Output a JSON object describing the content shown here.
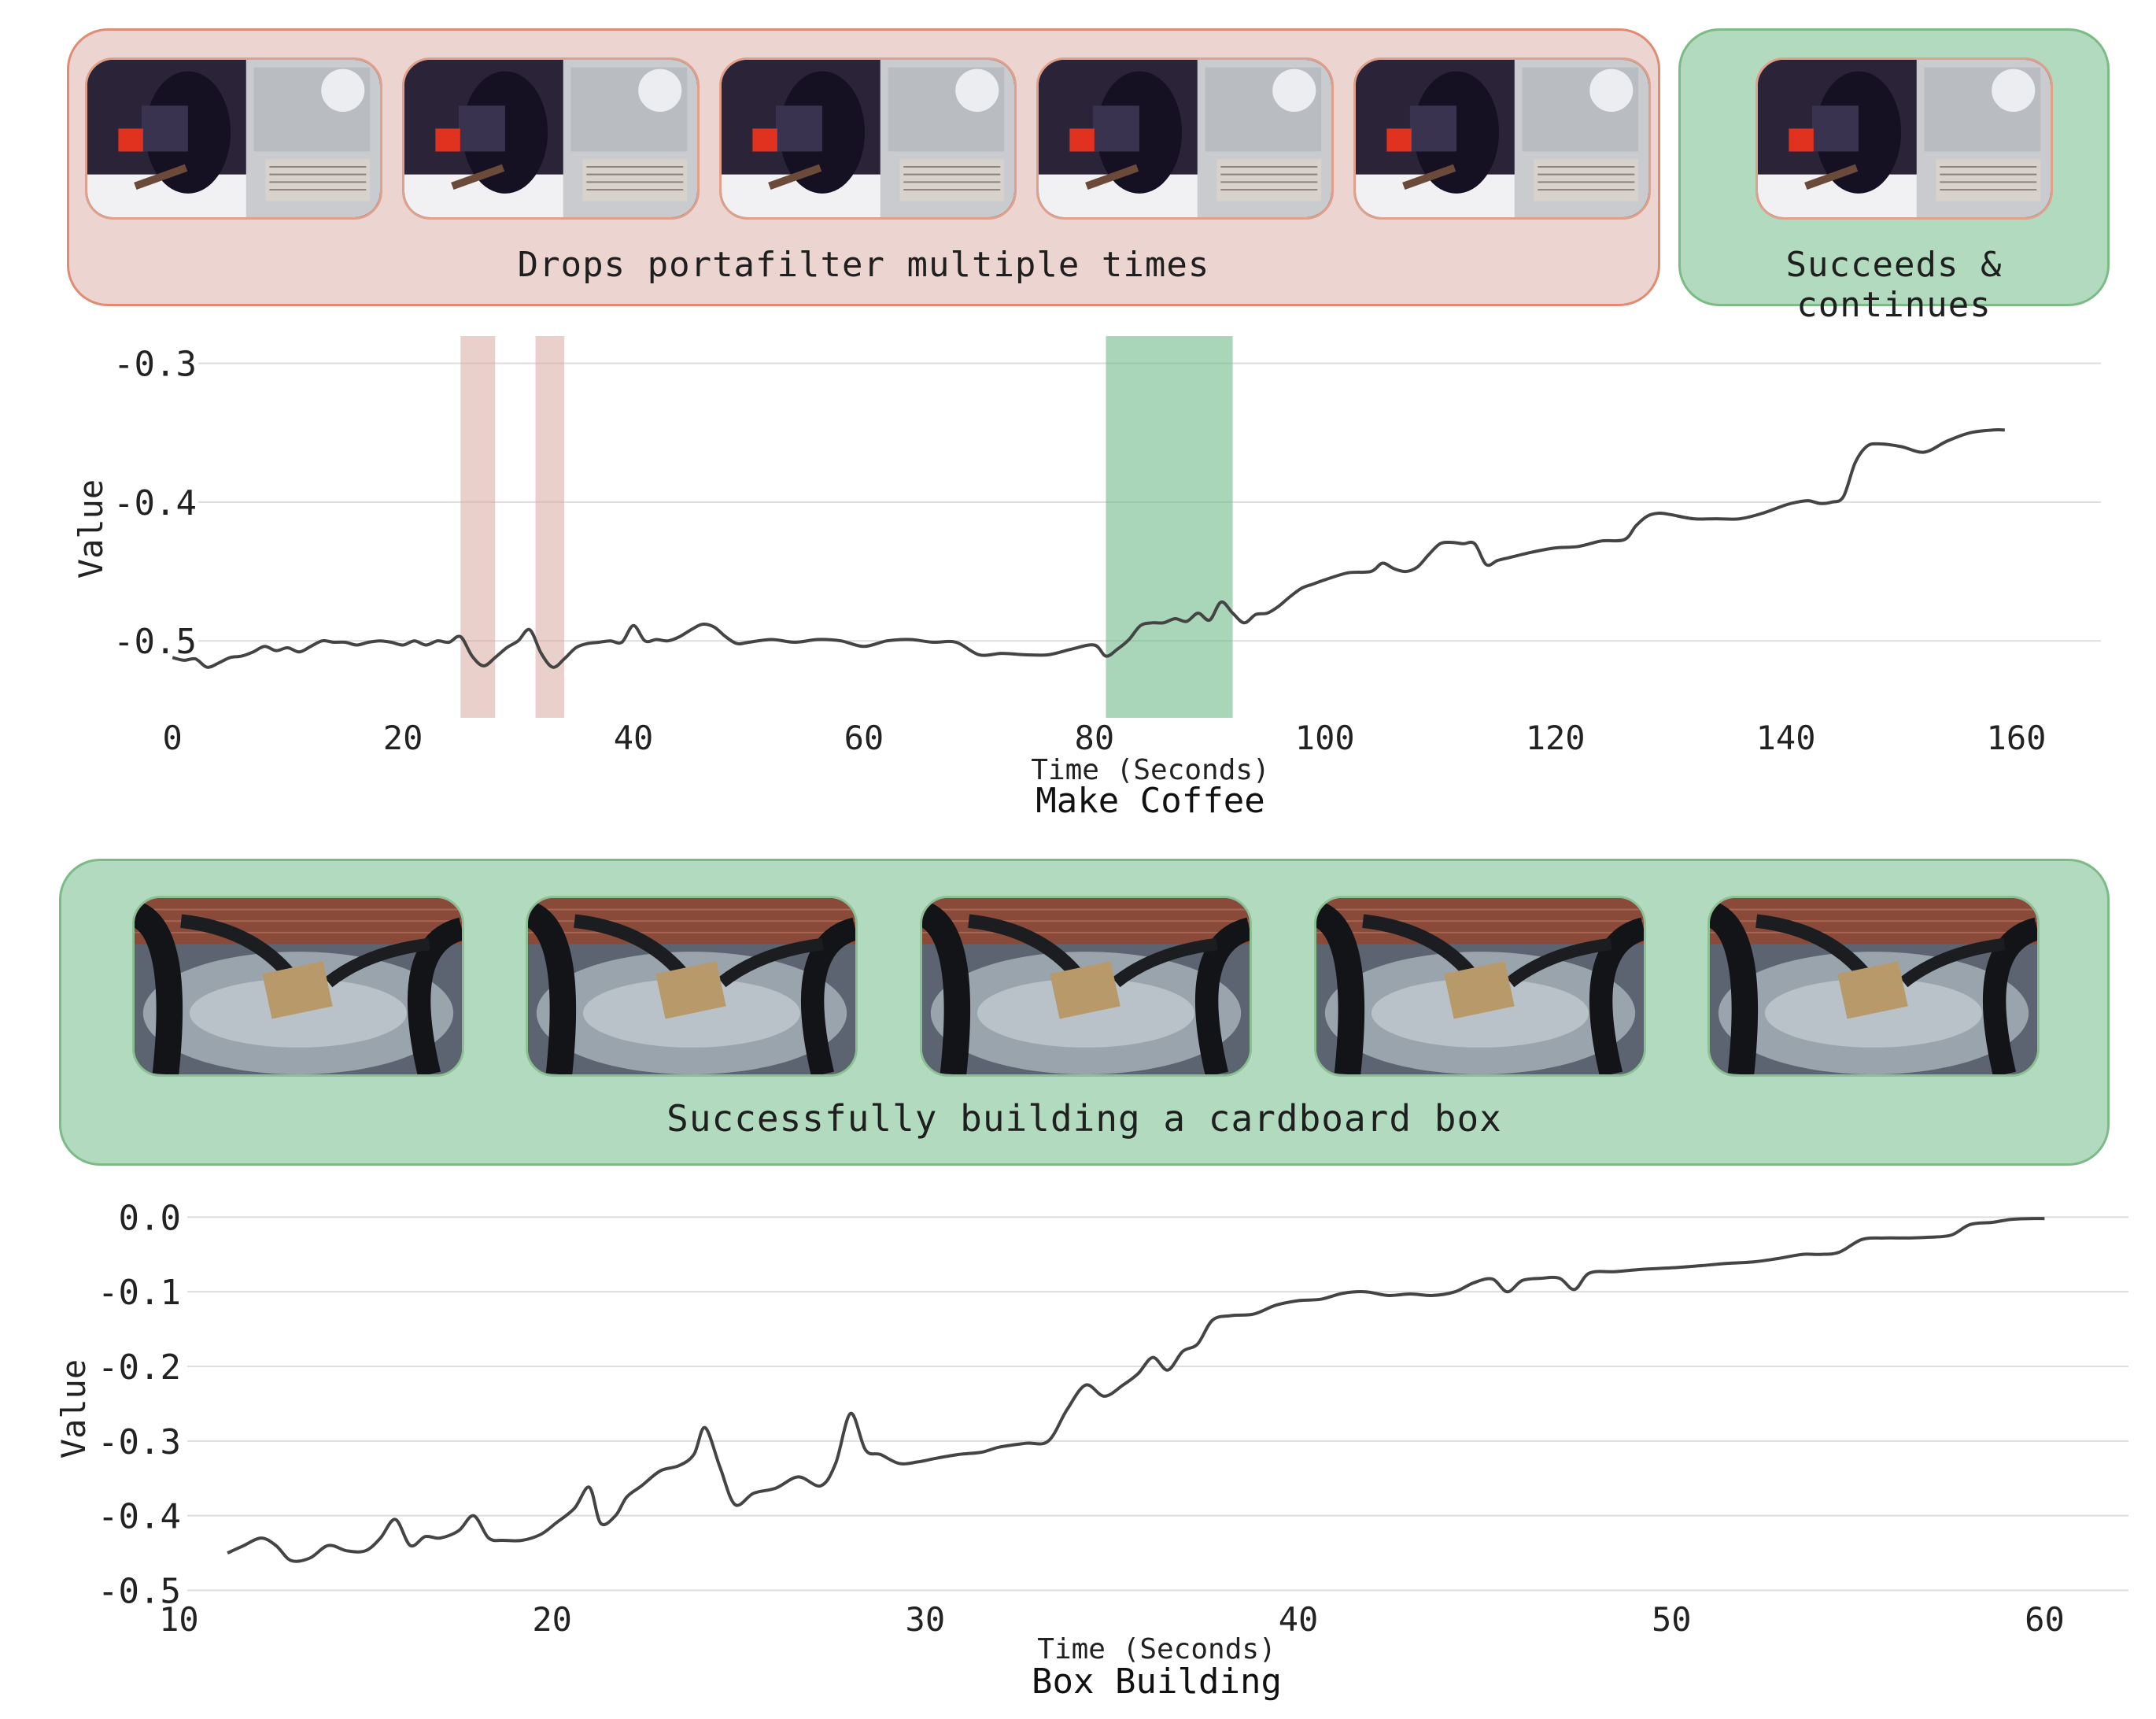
{
  "coffee_section": {
    "failure_caption": "Drops portafilter multiple times",
    "success_caption": "Succeeds & continues",
    "failure_frames": [
      "frame",
      "frame",
      "frame",
      "frame",
      "frame"
    ],
    "success_frames": [
      "frame"
    ]
  },
  "box_section": {
    "caption": "Successfully building a cardboard box",
    "frames": [
      "frame",
      "frame",
      "frame",
      "frame",
      "frame"
    ]
  },
  "colors": {
    "failure_fill": "#ecd5d0",
    "failure_border": "#e08c72",
    "failure_band": "#d9aaa0",
    "success_fill": "#b1dabf",
    "success_border": "#7dbb86",
    "success_band": "#6fb98a",
    "line": "#444444",
    "grid": "#dddddd"
  },
  "chart_data": [
    {
      "type": "line",
      "title": "Make Coffee",
      "xlabel": "Time (Seconds)",
      "ylabel": "Value",
      "xlim": [
        -8,
        167
      ],
      "ylim": [
        -0.56,
        -0.29
      ],
      "xticks": [
        0,
        20,
        40,
        60,
        80,
        100,
        120,
        140,
        160
      ],
      "yticks": [
        -0.3,
        -0.4,
        -0.5
      ],
      "ytick_labels": [
        "-0.3",
        "-0.4",
        "-0.5"
      ],
      "grid": "horizontal",
      "highlight_bands": [
        {
          "x0": 25,
          "x1": 28,
          "kind": "failure"
        },
        {
          "x0": 31.5,
          "x1": 34,
          "kind": "failure"
        },
        {
          "x0": 81,
          "x1": 92,
          "kind": "success"
        }
      ],
      "series": [
        {
          "name": "Value",
          "x": [
            0,
            1,
            2,
            3,
            4,
            5,
            6,
            7,
            8,
            9,
            10,
            11,
            12,
            13,
            14,
            15,
            16,
            17,
            18,
            19,
            20,
            21,
            22,
            23,
            24,
            25,
            26,
            27,
            28,
            29,
            30,
            31,
            32,
            33,
            34,
            35,
            36,
            37,
            38,
            39,
            40,
            41,
            42,
            43,
            44,
            45,
            46,
            47,
            48,
            49,
            50,
            52,
            54,
            56,
            58,
            60,
            62,
            64,
            66,
            68,
            70,
            72,
            74,
            76,
            78,
            80,
            81,
            82,
            83,
            84,
            85,
            86,
            87,
            88,
            89,
            90,
            91,
            92,
            93,
            94,
            95,
            96,
            97,
            98,
            99,
            100,
            102,
            104,
            105,
            106,
            107,
            108,
            109,
            110,
            111,
            112,
            113,
            114,
            115,
            116,
            118,
            120,
            122,
            124,
            126,
            127,
            128,
            129,
            130,
            132,
            134,
            136,
            138,
            140,
            141,
            142,
            143,
            144,
            145,
            146,
            147,
            148,
            150,
            152,
            154,
            156,
            158,
            159
          ],
          "values": [
            -0.512,
            -0.514,
            -0.513,
            -0.519,
            -0.516,
            -0.512,
            -0.511,
            -0.508,
            -0.504,
            -0.507,
            -0.505,
            -0.508,
            -0.504,
            -0.5,
            -0.501,
            -0.501,
            -0.503,
            -0.501,
            -0.5,
            -0.501,
            -0.503,
            -0.5,
            -0.503,
            -0.5,
            -0.501,
            -0.497,
            -0.511,
            -0.518,
            -0.512,
            -0.505,
            -0.5,
            -0.492,
            -0.509,
            -0.519,
            -0.513,
            -0.505,
            -0.502,
            -0.501,
            -0.5,
            -0.501,
            -0.489,
            -0.5,
            -0.499,
            -0.5,
            -0.497,
            -0.492,
            -0.488,
            -0.49,
            -0.497,
            -0.502,
            -0.501,
            -0.499,
            -0.501,
            -0.499,
            -0.5,
            -0.504,
            -0.5,
            -0.499,
            -0.501,
            -0.501,
            -0.51,
            -0.509,
            -0.51,
            -0.51,
            -0.506,
            -0.503,
            -0.511,
            -0.506,
            -0.499,
            -0.489,
            -0.487,
            -0.487,
            -0.484,
            -0.486,
            -0.48,
            -0.485,
            -0.472,
            -0.48,
            -0.487,
            -0.481,
            -0.48,
            -0.475,
            -0.468,
            -0.462,
            -0.459,
            -0.456,
            -0.451,
            -0.45,
            -0.444,
            -0.448,
            -0.45,
            -0.447,
            -0.438,
            -0.43,
            -0.429,
            -0.43,
            -0.43,
            -0.445,
            -0.442,
            -0.44,
            -0.436,
            -0.433,
            -0.432,
            -0.428,
            -0.427,
            -0.417,
            -0.41,
            -0.408,
            -0.409,
            -0.412,
            -0.412,
            -0.412,
            -0.408,
            -0.402,
            -0.4,
            -0.399,
            -0.401,
            -0.4,
            -0.396,
            -0.372,
            -0.36,
            -0.358,
            -0.36,
            -0.364,
            -0.356,
            -0.35,
            -0.348,
            -0.348
          ]
        }
      ]
    },
    {
      "type": "line",
      "title": "Box Building",
      "xlabel": "Time (Seconds)",
      "ylabel": "Value",
      "xlim": [
        9,
        62.5
      ],
      "ylim": [
        -0.51,
        0.013
      ],
      "xticks": [
        10,
        20,
        30,
        40,
        50,
        60
      ],
      "yticks": [
        0.0,
        -0.1,
        -0.2,
        -0.3,
        -0.4,
        -0.5
      ],
      "ytick_labels": [
        "0.0",
        "-0.1",
        "-0.2",
        "-0.3",
        "-0.4",
        "-0.5"
      ],
      "grid": "horizontal",
      "highlight_bands": [],
      "series": [
        {
          "name": "Value",
          "x": [
            11.3,
            11.7,
            12.2,
            12.6,
            13.0,
            13.5,
            14.0,
            14.5,
            15.0,
            15.4,
            15.8,
            16.2,
            16.6,
            17.0,
            17.5,
            17.9,
            18.3,
            18.7,
            19.2,
            19.7,
            20.1,
            20.6,
            21.0,
            21.3,
            21.7,
            22.0,
            22.4,
            22.9,
            23.4,
            23.8,
            24.1,
            24.5,
            24.9,
            25.4,
            26.0,
            26.6,
            27.2,
            27.6,
            28.0,
            28.4,
            28.8,
            29.3,
            29.8,
            30.3,
            30.9,
            31.5,
            32.0,
            32.7,
            33.3,
            33.8,
            34.3,
            34.8,
            35.3,
            35.7,
            36.1,
            36.5,
            36.9,
            37.3,
            37.7,
            38.2,
            38.8,
            39.4,
            40.0,
            40.6,
            41.2,
            41.8,
            42.4,
            43.0,
            43.6,
            44.2,
            44.7,
            45.2,
            45.6,
            46.0,
            46.5,
            47.0,
            47.4,
            47.8,
            48.5,
            49.2,
            50.0,
            50.8,
            51.5,
            52.2,
            52.8,
            53.5,
            54.0,
            54.5,
            55.1,
            55.7,
            56.3,
            56.9,
            57.5,
            58.0,
            58.6,
            59.1,
            59.6,
            60.0
          ],
          "values": [
            -0.45,
            -0.441,
            -0.43,
            -0.44,
            -0.46,
            -0.457,
            -0.44,
            -0.447,
            -0.447,
            -0.43,
            -0.405,
            -0.44,
            -0.428,
            -0.43,
            -0.42,
            -0.4,
            -0.43,
            -0.433,
            -0.433,
            -0.425,
            -0.41,
            -0.39,
            -0.362,
            -0.41,
            -0.4,
            -0.375,
            -0.36,
            -0.34,
            -0.333,
            -0.318,
            -0.282,
            -0.335,
            -0.385,
            -0.37,
            -0.363,
            -0.348,
            -0.36,
            -0.33,
            -0.263,
            -0.312,
            -0.318,
            -0.33,
            -0.328,
            -0.323,
            -0.318,
            -0.315,
            -0.308,
            -0.303,
            -0.3,
            -0.258,
            -0.225,
            -0.24,
            -0.225,
            -0.21,
            -0.188,
            -0.205,
            -0.18,
            -0.17,
            -0.138,
            -0.132,
            -0.13,
            -0.118,
            -0.112,
            -0.11,
            -0.102,
            -0.1,
            -0.105,
            -0.103,
            -0.105,
            -0.1,
            -0.088,
            -0.083,
            -0.1,
            -0.085,
            -0.082,
            -0.082,
            -0.097,
            -0.075,
            -0.073,
            -0.07,
            -0.068,
            -0.065,
            -0.062,
            -0.06,
            -0.056,
            -0.05,
            -0.05,
            -0.047,
            -0.03,
            -0.028,
            -0.028,
            -0.027,
            -0.024,
            -0.01,
            -0.007,
            -0.003,
            -0.002,
            -0.002
          ]
        }
      ]
    }
  ]
}
